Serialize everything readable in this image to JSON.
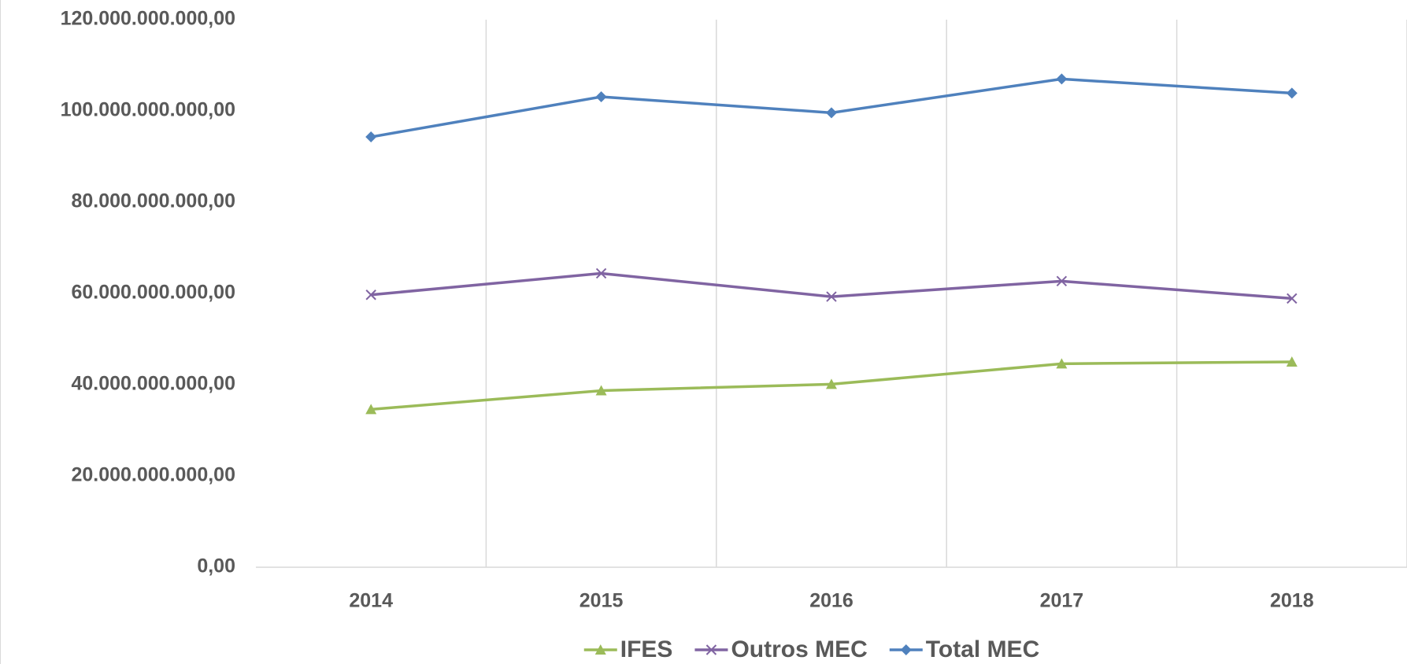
{
  "chart_data": {
    "type": "line",
    "categories": [
      "2014",
      "2015",
      "2016",
      "2017",
      "2018"
    ],
    "series": [
      {
        "name": "IFES",
        "color": "#9bbb59",
        "marker": "triangle",
        "values": [
          34600000000,
          38700000000,
          40100000000,
          44600000000,
          45000000000
        ]
      },
      {
        "name": "Outros MEC",
        "color": "#8064a2",
        "marker": "x",
        "values": [
          59700000000,
          64400000000,
          59300000000,
          62700000000,
          58900000000
        ]
      },
      {
        "name": "Total MEC",
        "color": "#4f81bd",
        "marker": "diamond",
        "values": [
          94300000000,
          103100000000,
          99600000000,
          107000000000,
          103900000000
        ]
      }
    ],
    "ylim": [
      0,
      120000000000
    ],
    "yticks": [
      {
        "value": 0,
        "label": "0,00"
      },
      {
        "value": 20000000000,
        "label": "20.000.000.000,00"
      },
      {
        "value": 40000000000,
        "label": "40.000.000.000,00"
      },
      {
        "value": 60000000000,
        "label": "60.000.000.000,00"
      },
      {
        "value": 80000000000,
        "label": "80.000.000.000,00"
      },
      {
        "value": 100000000000,
        "label": "100.000.000.000,00"
      },
      {
        "value": 120000000000,
        "label": "120.000.000.000,00"
      }
    ],
    "legend": "bottom"
  }
}
